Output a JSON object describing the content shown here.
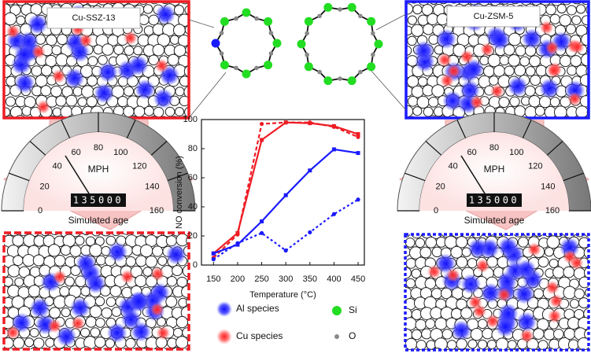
{
  "panels": [
    "Cu-SSZ-13",
    "Cu-ZSM-5"
  ],
  "gauges": [
    {
      "unit": "MPH",
      "ticks": [
        0,
        20,
        40,
        60,
        80,
        100,
        120,
        140,
        160
      ],
      "odometer": "135000",
      "label": "Simulated age"
    },
    {
      "unit": "MPH",
      "ticks": [
        0,
        20,
        40,
        60,
        80,
        100,
        120,
        140,
        160
      ],
      "odometer": "135000",
      "label": "Simulated age"
    }
  ],
  "species_legend": [
    {
      "label": "Al species",
      "color": "#2020ff"
    },
    {
      "label": "Cu species",
      "color": "#ee2a2a"
    },
    {
      "label": "Si",
      "color": "#22dd22"
    },
    {
      "label": "O",
      "color": "#888888"
    }
  ],
  "chart_data": {
    "type": "line",
    "x": [
      150,
      200,
      250,
      300,
      350,
      400,
      450
    ],
    "xlabel": "Temperature (°C)",
    "ylabel": "NO conversion (%)",
    "xlim": [
      125,
      463
    ],
    "xticks": [
      150,
      200,
      250,
      300,
      350,
      400,
      450
    ],
    "ylim": [
      0,
      100
    ],
    "yticks": [
      0,
      20,
      40,
      60,
      80,
      100
    ],
    "series": [
      {
        "color": "#ee1c24",
        "dash": "solid",
        "values": [
          8,
          22,
          86,
          98,
          97.5,
          95.5,
          90
        ]
      },
      {
        "color": "#ee1c24",
        "dash": "dashed",
        "values": [
          5,
          21,
          97,
          98,
          98,
          95,
          88
        ]
      },
      {
        "color": "#1a1aff",
        "dash": "solid",
        "values": [
          8,
          14,
          30,
          48,
          65,
          79.5,
          77
        ]
      },
      {
        "color": "#1a1aff",
        "dash": "dotted",
        "values": [
          4,
          15,
          22,
          10,
          22.5,
          35,
          45
        ]
      }
    ]
  }
}
